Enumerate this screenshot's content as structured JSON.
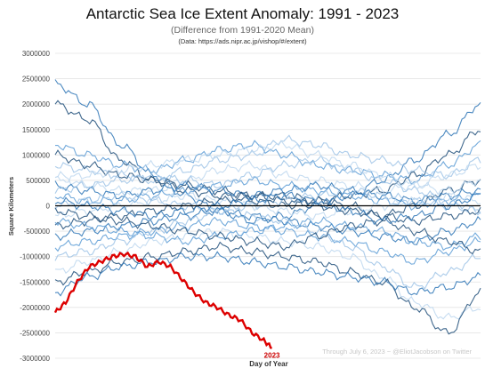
{
  "chart_data": {
    "type": "line",
    "title": "Antarctic Sea Ice Extent Anomaly: 1991 - 2023",
    "subtitle": "(Difference from 1991-2020 Mean)",
    "source": "(Data: https://ads.nipr.ac.jp/vishop/#/extent)",
    "xlabel": "Day of Year",
    "ylabel": "Square Kilometers",
    "annotation": "Through July 6, 2023 ~ @EliotJacobson on Twitter",
    "highlight_label": "2023",
    "ylim": [
      -3000000,
      3000000
    ],
    "xlim": [
      1,
      366
    ],
    "y_ticks": [
      "3000000",
      "2500000",
      "2000000",
      "1500000",
      "1000000",
      "500000",
      "0",
      "-500000",
      "-1000000",
      "-1500000",
      "-2000000",
      "-2500000",
      "-3000000"
    ],
    "grid": "horizontal",
    "colors": {
      "highlight": "#dd0000",
      "series": [
        "#1f4e79",
        "#2e75b6",
        "#5b9bd5",
        "#9dc3e6",
        "#bdd7ee"
      ],
      "zero_line": "#000000"
    },
    "series": [
      {
        "values": [
          2000000,
          1700000,
          900000,
          500000,
          300000,
          200000,
          100000,
          0,
          100000,
          200000,
          300000,
          600000,
          1000000,
          1500000
        ]
      },
      {
        "values": [
          2400000,
          2000000,
          1200000,
          600000,
          200000,
          -100000,
          -300000,
          -200000,
          0,
          200000,
          500000,
          900000,
          1400000,
          2000000
        ]
      },
      {
        "values": [
          1200000,
          1000000,
          800000,
          700000,
          900000,
          1100000,
          1200000,
          1000000,
          800000,
          700000,
          600000,
          500000,
          800000,
          1200000
        ]
      },
      {
        "values": [
          800000,
          700000,
          600000,
          500000,
          700000,
          900000,
          1000000,
          1300000,
          1200000,
          1000000,
          900000,
          700000,
          600000,
          900000
        ]
      },
      {
        "values": [
          600000,
          400000,
          300000,
          300000,
          500000,
          700000,
          800000,
          600000,
          500000,
          400000,
          300000,
          400000,
          600000,
          800000
        ]
      },
      {
        "values": [
          1000000,
          800000,
          600000,
          500000,
          400000,
          300000,
          200000,
          200000,
          100000,
          0,
          -200000,
          0,
          300000,
          500000
        ]
      },
      {
        "values": [
          400000,
          300000,
          200000,
          300000,
          400000,
          300000,
          200000,
          300000,
          400000,
          300000,
          200000,
          100000,
          200000,
          300000
        ]
      },
      {
        "values": [
          200000,
          100000,
          100000,
          200000,
          300000,
          400000,
          500000,
          400000,
          300000,
          200000,
          100000,
          0,
          100000,
          200000
        ]
      },
      {
        "values": [
          0,
          100000,
          200000,
          100000,
          0,
          -100000,
          0,
          100000,
          200000,
          300000,
          200000,
          100000,
          0,
          -100000
        ]
      },
      {
        "values": [
          -200000,
          -100000,
          0,
          100000,
          200000,
          100000,
          0,
          -100000,
          -200000,
          -100000,
          0,
          100000,
          200000,
          100000
        ]
      },
      {
        "values": [
          -400000,
          -300000,
          -200000,
          -100000,
          0,
          100000,
          200000,
          100000,
          0,
          -100000,
          -200000,
          -300000,
          -200000,
          -100000
        ]
      },
      {
        "values": [
          -600000,
          -500000,
          -400000,
          -300000,
          -200000,
          -100000,
          -200000,
          -300000,
          -400000,
          -500000,
          -600000,
          -700000,
          -500000,
          -300000
        ]
      },
      {
        "values": [
          -800000,
          -700000,
          -600000,
          -500000,
          -400000,
          -300000,
          -400000,
          -500000,
          -600000,
          -700000,
          -900000,
          -1100000,
          -900000,
          -700000
        ]
      },
      {
        "values": [
          -1000000,
          -900000,
          -700000,
          -500000,
          -300000,
          -100000,
          -200000,
          -300000,
          -500000,
          -800000,
          -1200000,
          -1600000,
          -1300000,
          -1000000
        ]
      },
      {
        "values": [
          -1300000,
          -1100000,
          -900000,
          -700000,
          -600000,
          -500000,
          -600000,
          -700000,
          -800000,
          -1000000,
          -1400000,
          -1900000,
          -2200000,
          -2000000
        ]
      },
      {
        "values": [
          -1500000,
          -1300000,
          -1100000,
          -1000000,
          -900000,
          -800000,
          -900000,
          -1000000,
          -1100000,
          -1300000,
          -1500000,
          -2000000,
          -2500000,
          -1700000
        ]
      },
      {
        "values": [
          -1700000,
          -1400000,
          -1200000,
          -1100000,
          -1000000,
          -1000000,
          -1100000,
          -1200000,
          -1300000,
          -1400000,
          -1500000,
          -1700000,
          -1600000,
          -1400000
        ]
      },
      {
        "values": [
          -300000,
          -400000,
          -500000,
          -600000,
          -700000,
          -600000,
          -500000,
          -400000,
          -300000,
          -400000,
          -500000,
          -700000,
          -800000,
          -600000
        ]
      },
      {
        "values": [
          300000,
          400000,
          500000,
          600000,
          500000,
          400000,
          600000,
          800000,
          900000,
          700000,
          500000,
          300000,
          100000,
          -100000
        ]
      },
      {
        "values": [
          500000,
          600000,
          700000,
          800000,
          900000,
          1000000,
          1100000,
          1200000,
          1000000,
          800000,
          600000,
          400000,
          300000,
          500000
        ]
      },
      {
        "values": [
          -100000,
          -200000,
          -300000,
          -400000,
          -500000,
          -600000,
          -700000,
          -800000,
          -600000,
          -400000,
          -300000,
          -500000,
          -700000,
          -900000
        ]
      },
      {
        "values": [
          100000,
          0,
          -100000,
          -200000,
          -100000,
          0,
          100000,
          200000,
          100000,
          -100000,
          -300000,
          -200000,
          0,
          200000
        ]
      }
    ],
    "highlight": {
      "name": "2023",
      "x": [
        1,
        10,
        20,
        30,
        40,
        50,
        60,
        70,
        80,
        90,
        100,
        110,
        120,
        130,
        140,
        150,
        160,
        170,
        180,
        187
      ],
      "values": [
        -2100000,
        -1900000,
        -1500000,
        -1200000,
        -1100000,
        -1000000,
        -950000,
        -1000000,
        -1200000,
        -1100000,
        -1200000,
        -1450000,
        -1700000,
        -1900000,
        -2000000,
        -2150000,
        -2250000,
        -2500000,
        -2650000,
        -2800000
      ]
    }
  }
}
